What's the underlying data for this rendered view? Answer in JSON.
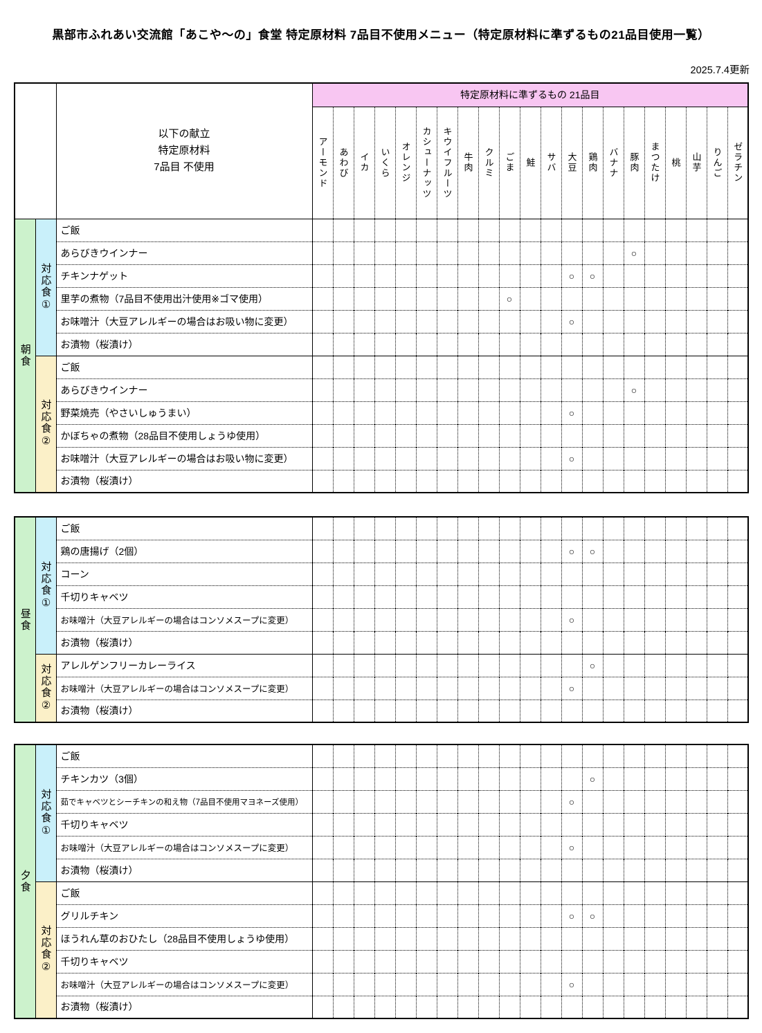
{
  "title": "黒部市ふれあい交流館「あこや～の」食堂 特定原材料 7品目不使用メニュー（特定原材料に準ずるもの21品目使用一覧）",
  "updated": "2025.7.4更新",
  "mark": "○",
  "colors": {
    "header_pink": "#F8C6F2",
    "meal_green": "#CCF2CC",
    "group1_cyan": "#C9F0FA",
    "group2_yellow": "#FBF0C8"
  },
  "header": {
    "menu_header_lines": [
      "以下の献立",
      "特定原材料",
      "7品目 不使用"
    ],
    "allergen_group_header": "特定原材料に準ずるもの 21品目",
    "allergens": [
      "アーモンド",
      "あわび",
      "イカ",
      "いくら",
      "オレンジ",
      "カシューナッツ",
      "キウイフルーツ",
      "牛肉",
      "クルミ",
      "ごま",
      "鮭",
      "サバ",
      "大豆",
      "鶏肉",
      "バナナ",
      "豚肉",
      "まつたけ",
      "桃",
      "山芋",
      "りんご",
      "ゼラチン"
    ]
  },
  "meals": [
    {
      "name": "朝食",
      "groups": [
        {
          "name": "対応食①",
          "items": [
            {
              "label": "ご飯",
              "allergens": []
            },
            {
              "label": "あらびきウインナー",
              "allergens": [
                "豚肉"
              ]
            },
            {
              "label": "チキンナゲット",
              "allergens": [
                "大豆",
                "鶏肉"
              ]
            },
            {
              "label": "里芋の煮物（7品目不使用出汁使用※ゴマ使用）",
              "allergens": [
                "ごま"
              ]
            },
            {
              "label": "お味噌汁（大豆アレルギーの場合はお吸い物に変更）",
              "allergens": [
                "大豆"
              ]
            },
            {
              "label": "お漬物（桜漬け）",
              "allergens": []
            }
          ]
        },
        {
          "name": "対応食②",
          "items": [
            {
              "label": "ご飯",
              "allergens": []
            },
            {
              "label": "あらびきウインナー",
              "allergens": [
                "豚肉"
              ]
            },
            {
              "label": "野菜焼売（やさいしゅうまい）",
              "allergens": [
                "大豆"
              ]
            },
            {
              "label": "かぼちゃの煮物（28品目不使用しょうゆ使用）",
              "allergens": []
            },
            {
              "label": "お味噌汁（大豆アレルギーの場合はお吸い物に変更）",
              "allergens": [
                "大豆"
              ]
            },
            {
              "label": "お漬物（桜漬け）",
              "allergens": []
            }
          ]
        }
      ]
    },
    {
      "name": "昼食",
      "groups": [
        {
          "name": "対応食①",
          "items": [
            {
              "label": "ご飯",
              "allergens": []
            },
            {
              "label": "鶏の唐揚げ（2個）",
              "allergens": [
                "大豆",
                "鶏肉"
              ]
            },
            {
              "label": "コーン",
              "allergens": []
            },
            {
              "label": "千切りキャベツ",
              "allergens": []
            },
            {
              "label": "お味噌汁（大豆アレルギーの場合はコンソメスープに変更）",
              "allergens": [
                "大豆"
              ]
            },
            {
              "label": "お漬物（桜漬け）",
              "allergens": []
            }
          ]
        },
        {
          "name": "対応食②",
          "items": [
            {
              "label": "アレルゲンフリーカレーライス",
              "allergens": [
                "鶏肉"
              ]
            },
            {
              "label": "お味噌汁（大豆アレルギーの場合はコンソメスープに変更）",
              "allergens": [
                "大豆"
              ]
            },
            {
              "label": "お漬物（桜漬け）",
              "allergens": []
            }
          ]
        }
      ]
    },
    {
      "name": "夕食",
      "groups": [
        {
          "name": "対応食①",
          "items": [
            {
              "label": "ご飯",
              "allergens": []
            },
            {
              "label": "チキンカツ（3個）",
              "allergens": [
                "鶏肉"
              ]
            },
            {
              "label": "茹でキャベツとシーチキンの和え物（7品目不使用マヨネーズ使用）",
              "allergens": [
                "大豆"
              ]
            },
            {
              "label": "千切りキャベツ",
              "allergens": []
            },
            {
              "label": "お味噌汁（大豆アレルギーの場合はコンソメスープに変更）",
              "allergens": [
                "大豆"
              ]
            },
            {
              "label": "お漬物（桜漬け）",
              "allergens": []
            }
          ]
        },
        {
          "name": "対応食②",
          "items": [
            {
              "label": "ご飯",
              "allergens": []
            },
            {
              "label": "グリルチキン",
              "allergens": [
                "大豆",
                "鶏肉"
              ]
            },
            {
              "label": "ほうれん草のおひたし（28品目不使用しょうゆ使用）",
              "allergens": []
            },
            {
              "label": "千切りキャベツ",
              "allergens": []
            },
            {
              "label": "お味噌汁（大豆アレルギーの場合はコンソメスープに変更）",
              "allergens": [
                "大豆"
              ]
            },
            {
              "label": "お漬物（桜漬け）",
              "allergens": []
            }
          ]
        }
      ]
    }
  ]
}
